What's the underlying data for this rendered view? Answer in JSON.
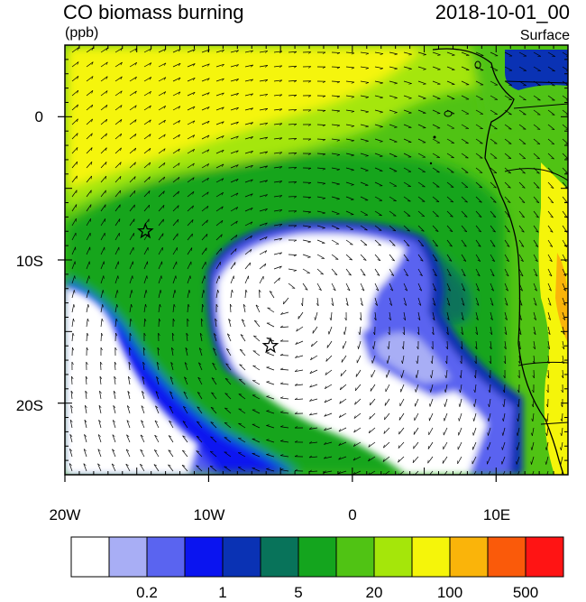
{
  "header": {
    "title": "CO biomass burning",
    "units": "(ppb)",
    "time": "2018-10-01_00",
    "level": "Surface"
  },
  "map": {
    "lon_range": [
      -20,
      15
    ],
    "lat_range": [
      -25,
      5
    ],
    "lon_ticks": [
      {
        "value": -20,
        "label": "20W"
      },
      {
        "value": -10,
        "label": "10W"
      },
      {
        "value": 0,
        "label": "0"
      },
      {
        "value": 10,
        "label": "10E"
      }
    ],
    "lat_ticks": [
      {
        "value": 0,
        "label": "0"
      },
      {
        "value": -10,
        "label": "10S"
      },
      {
        "value": -20,
        "label": "20S"
      }
    ],
    "stations": [
      {
        "lon": -14.4,
        "lat": -8.0
      },
      {
        "lon": -5.7,
        "lat": -16.0
      }
    ],
    "wind_field": "clockwise anticyclone centered near 5W 12S"
  },
  "colorbar": {
    "colors": [
      "#ffffff",
      "#a8aef5",
      "#5a64f0",
      "#0a14f0",
      "#0a32b4",
      "#08735a",
      "#14a51e",
      "#50c314",
      "#a5e60a",
      "#f5f50a",
      "#fab40a",
      "#fa5a0a",
      "#ff1414"
    ],
    "labels": [
      {
        "after_box": 2,
        "text": "0.2"
      },
      {
        "after_box": 4,
        "text": "1"
      },
      {
        "after_box": 6,
        "text": "5"
      },
      {
        "after_box": 8,
        "text": "20"
      },
      {
        "after_box": 10,
        "text": "100"
      },
      {
        "after_box": 12,
        "text": "500"
      }
    ]
  }
}
